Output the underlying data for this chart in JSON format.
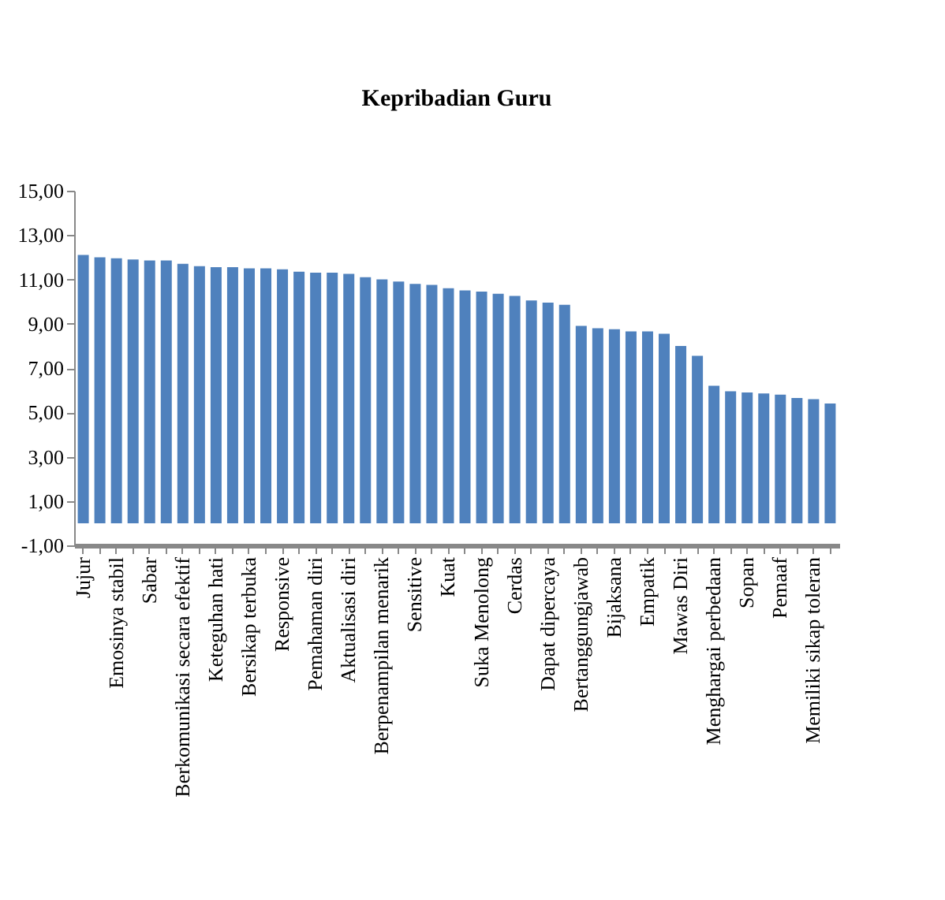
{
  "chart_data": {
    "type": "bar",
    "title": "Kepribadian Guru",
    "categories": [
      "Jujur",
      null,
      "Emosinya stabil",
      null,
      "Sabar",
      null,
      "Berkomunikasi secara efektif",
      null,
      "Keteguhan hati",
      null,
      "Bersikap terbuka",
      null,
      "Responsive",
      null,
      "Pemahaman diri",
      null,
      "Aktualisasi diri",
      null,
      "Berpenampilan menarik",
      null,
      "Sensitive",
      null,
      "Kuat",
      null,
      "Suka Menolong",
      null,
      "Cerdas",
      null,
      "Dapat dipercaya",
      null,
      "Bertanggungjawab",
      null,
      "Bijaksana",
      null,
      "Empatik",
      null,
      "Mawas Diri",
      null,
      "Menghargai perbedaan",
      null,
      "Sopan",
      null,
      "Pemaaf",
      null,
      "Memiliki sikap toleran",
      null
    ],
    "values": [
      12.1,
      12.0,
      11.95,
      11.9,
      11.85,
      11.85,
      11.7,
      11.6,
      11.55,
      11.55,
      11.5,
      11.5,
      11.45,
      11.35,
      11.3,
      11.3,
      11.25,
      11.1,
      11.0,
      10.9,
      10.8,
      10.75,
      10.6,
      10.5,
      10.45,
      10.35,
      10.25,
      10.05,
      9.95,
      9.85,
      8.9,
      8.8,
      8.75,
      8.65,
      8.65,
      8.55,
      8.0,
      7.55,
      6.2,
      5.95,
      5.9,
      5.85,
      5.8,
      5.65,
      5.6,
      5.4
    ],
    "color": "#4f81bd",
    "ylim": [
      -1,
      15
    ],
    "yticks": [
      {
        "value": -1,
        "label": "-1,00"
      },
      {
        "value": 1,
        "label": "1,00"
      },
      {
        "value": 3,
        "label": "3,00"
      },
      {
        "value": 5,
        "label": "5,00"
      },
      {
        "value": 7,
        "label": "7,00"
      },
      {
        "value": 9,
        "label": "9,00"
      },
      {
        "value": 11,
        "label": "11,00"
      },
      {
        "value": 13,
        "label": "13,00"
      },
      {
        "value": 15,
        "label": "15,00"
      }
    ],
    "grid": false
  }
}
